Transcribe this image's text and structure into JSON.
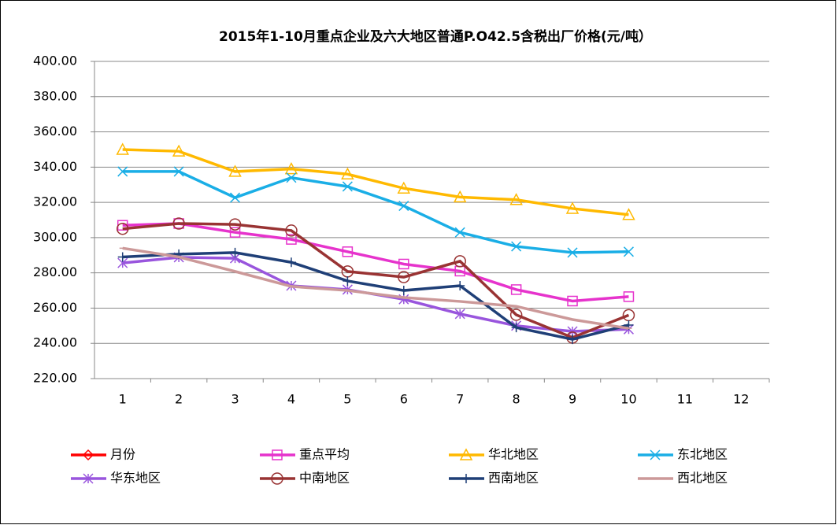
{
  "chart_data": {
    "type": "line",
    "title": "2015年1-10月重点企业及六大地区普通P.O42.5含税出厂价格(元/吨）",
    "categories": [
      1,
      2,
      3,
      4,
      5,
      6,
      7,
      8,
      9,
      10,
      11,
      12
    ],
    "ylim": [
      220,
      400
    ],
    "yticks": [
      {
        "value": 220,
        "label": "220.00"
      },
      {
        "value": 240,
        "label": "240.00"
      },
      {
        "value": 260,
        "label": "260.00"
      },
      {
        "value": 280,
        "label": "280.00"
      },
      {
        "value": 300,
        "label": "300.00"
      },
      {
        "value": 320,
        "label": "320.00"
      },
      {
        "value": 340,
        "label": "340.00"
      },
      {
        "value": 360,
        "label": "360.00"
      },
      {
        "value": 380,
        "label": "380.00"
      },
      {
        "value": 400,
        "label": "400.00"
      }
    ],
    "grid": true,
    "legend": "bottom",
    "series": [
      {
        "name": "月份",
        "color": "#ff0000",
        "marker": "diamond",
        "values": [
          null,
          null,
          null,
          null,
          null,
          null,
          null,
          null,
          null,
          null,
          null,
          null
        ]
      },
      {
        "name": "重点平均",
        "color": "#e633cc",
        "marker": "square",
        "values": [
          307,
          308,
          303,
          299,
          292,
          285,
          281,
          270.5,
          264,
          266.5,
          null,
          null
        ]
      },
      {
        "name": "华北地区",
        "color": "#ffb900",
        "marker": "triangle",
        "values": [
          350,
          349,
          337.5,
          339,
          336,
          328,
          323,
          321.5,
          316.5,
          313,
          null,
          null
        ]
      },
      {
        "name": "东北地区",
        "color": "#1aaee6",
        "marker": "x",
        "values": [
          337.5,
          337.5,
          322.7,
          334,
          329,
          318,
          303,
          295,
          291.5,
          292,
          null,
          null
        ]
      },
      {
        "name": "华东地区",
        "color": "#9955dd",
        "marker": "star",
        "values": [
          285.6,
          288.8,
          288.3,
          272.7,
          270.5,
          265,
          256.7,
          250,
          246.8,
          248,
          null,
          null
        ]
      },
      {
        "name": "中南地区",
        "color": "#993333",
        "marker": "circle",
        "values": [
          305,
          308,
          307.5,
          304,
          280.8,
          277.6,
          286.6,
          256.2,
          243.3,
          256,
          null,
          null
        ]
      },
      {
        "name": "西南地区",
        "color": "#1f3f77",
        "marker": "plus",
        "values": [
          289,
          290.6,
          291.5,
          286,
          275.4,
          270,
          272.7,
          249,
          242.3,
          250.4,
          null,
          null
        ]
      },
      {
        "name": "西北地区",
        "color": "#cc9999",
        "marker": "dash",
        "values": [
          294,
          289,
          280.8,
          272.3,
          270,
          266,
          263.8,
          261,
          253.5,
          248.5,
          null,
          null
        ]
      }
    ]
  }
}
